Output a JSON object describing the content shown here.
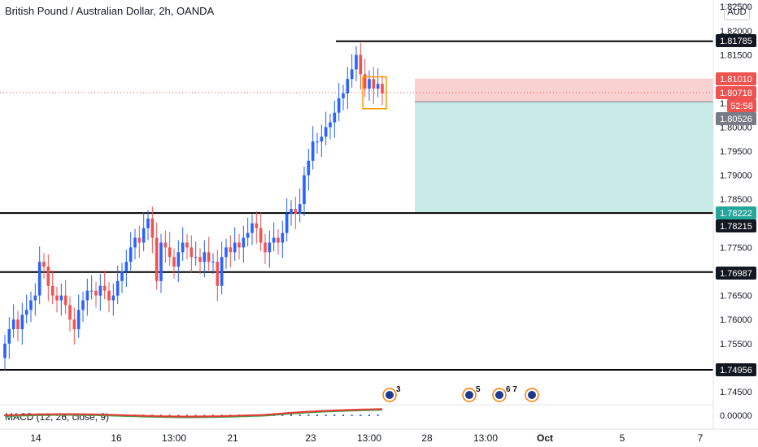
{
  "header": {
    "title": "British Pound / Australian Dollar, 2h, OANDA",
    "currency": "AUD"
  },
  "macd_label": "MACD (12, 26, close, 9)",
  "colors": {
    "bull": "#26a69a",
    "bull_candle": "#2962ff",
    "bear": "#ef5350",
    "hline": "#000000",
    "stop_zone": "#f9c5c5",
    "target_zone": "#c9ebe8",
    "macd_line": "#e53935",
    "signal_line": "#43a047",
    "badge_default": "#131722",
    "badge_red": "#ef5350",
    "badge_gray": "#787b86",
    "badge_teal": "#26a69a"
  },
  "chart_data": {
    "type": "candlestick",
    "title": "British Pound / Australian Dollar, 2h, OANDA",
    "y_axis_ticks": [
      "1.82000",
      "1.81500",
      "1.81000",
      "1.80500",
      "1.80000",
      "1.79500",
      "1.79000",
      "1.78500",
      "1.78000",
      "1.77500",
      "1.77000",
      "1.76500",
      "1.76000",
      "1.75500",
      "1.75000",
      "1.74500"
    ],
    "y_axis_top_label": "1.82500",
    "macd_axis_tick": "0.00000",
    "ylim": [
      1.745,
      1.8225
    ],
    "x_axis_labels": [
      "14",
      "16",
      "13:00",
      "21",
      "23",
      "13:00",
      "28",
      "13:00",
      "Oct",
      "5",
      "7"
    ],
    "horizontal_levels": [
      1.81785,
      1.78215,
      1.76987,
      1.74956
    ],
    "price_badges": [
      {
        "label": "1.81785",
        "style": "default"
      },
      {
        "label": "1.81010",
        "style": "red"
      },
      {
        "label": "1.80718",
        "style": "red"
      },
      {
        "label": "52:58",
        "style": "red"
      },
      {
        "label": "1.80526",
        "style": "gray"
      },
      {
        "label": "1.78222",
        "style": "teal"
      },
      {
        "label": "1.78215",
        "style": "default"
      },
      {
        "label": "1.76987",
        "style": "default"
      },
      {
        "label": "1.74956",
        "style": "default"
      }
    ],
    "position_box": {
      "stop": 1.8101,
      "entry": 1.80526,
      "target": 1.78222
    },
    "current_price": 1.80718,
    "event_markers": [
      {
        "label": "3",
        "x_label": "13:00"
      },
      {
        "label": "5",
        "x_label": "13:00"
      },
      {
        "label": "6 7",
        "x_label": "13:00"
      }
    ],
    "closes": [
      1.755,
      1.758,
      1.76,
      1.758,
      1.761,
      1.762,
      1.764,
      1.765,
      1.772,
      1.771,
      1.767,
      1.765,
      1.764,
      1.765,
      1.763,
      1.76,
      1.758,
      1.762,
      1.764,
      1.766,
      1.766,
      1.765,
      1.767,
      1.766,
      1.764,
      1.765,
      1.768,
      1.77,
      1.772,
      1.775,
      1.777,
      1.776,
      1.779,
      1.781,
      1.777,
      1.768,
      1.776,
      1.775,
      1.773,
      1.771,
      1.774,
      1.776,
      1.775,
      1.773,
      1.773,
      1.772,
      1.774,
      1.772,
      1.772,
      1.767,
      1.773,
      1.775,
      1.774,
      1.776,
      1.775,
      1.777,
      1.778,
      1.78,
      1.779,
      1.776,
      1.774,
      1.776,
      1.777,
      1.776,
      1.778,
      1.782,
      1.783,
      1.782,
      1.784,
      1.79,
      1.793,
      1.797,
      1.797,
      1.798,
      1.8,
      1.801,
      1.803,
      1.806,
      1.807,
      1.81,
      1.812,
      1.815,
      1.811,
      1.808,
      1.81,
      1.808,
      1.809,
      1.807
    ]
  }
}
